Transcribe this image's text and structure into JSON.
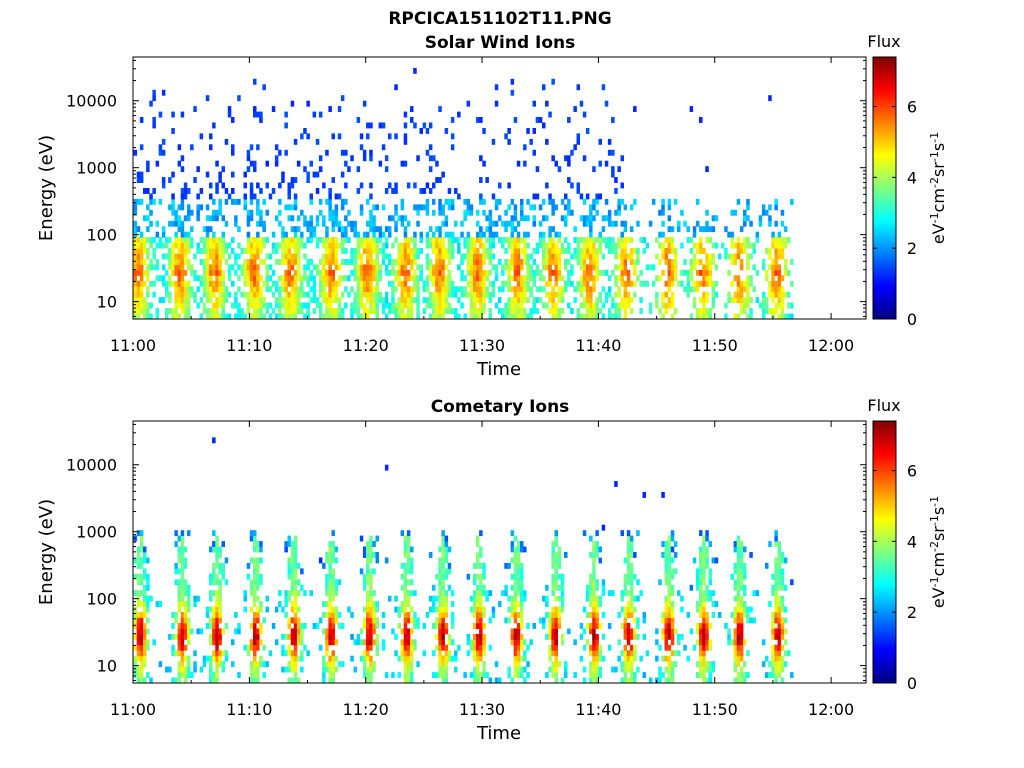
{
  "figure": {
    "title": "RPCICA151102T11.PNG"
  },
  "colors": {
    "colormap": [
      "#00007f",
      "#0000ff",
      "#007fff",
      "#00ffff",
      "#7fff7f",
      "#ffff00",
      "#ff7f00",
      "#ff0000",
      "#7f0000"
    ],
    "axes": "#000000",
    "background": "#ffffff"
  },
  "chart_data": [
    {
      "type": "heatmap",
      "title": "Solar Wind Ions",
      "xlabel": "Time",
      "ylabel": "Energy (eV)",
      "x_ticks": [
        "11:00",
        "11:10",
        "11:20",
        "11:30",
        "11:40",
        "11:50",
        "12:00"
      ],
      "x_range_min": [
        0,
        63
      ],
      "y_ticks": [
        "10",
        "100",
        "1000",
        "10000"
      ],
      "y_scale": "log",
      "y_range_eV": [
        5.5,
        45000
      ],
      "colorbar": {
        "title": "Flux",
        "label": "eV-1cm-2sr-1s-1",
        "ticks": [
          "0",
          "2",
          "4",
          "6"
        ],
        "range": [
          0,
          7.4
        ]
      },
      "data_end_min": 56.5,
      "continuous_end_min": 42,
      "pulse_centers_min": [
        0.3,
        3.9,
        6.9,
        10.3,
        13.4,
        16.9,
        20.0,
        23.3,
        26.2,
        29.5,
        32.9,
        36.0,
        39.1,
        42.3,
        45.8,
        48.8,
        52.0,
        55.2
      ],
      "grid": false
    },
    {
      "type": "heatmap",
      "title": "Cometary Ions",
      "xlabel": "Time",
      "ylabel": "Energy (eV)",
      "x_ticks": [
        "11:00",
        "11:10",
        "11:20",
        "11:30",
        "11:40",
        "11:50",
        "12:00"
      ],
      "x_range_min": [
        0,
        63
      ],
      "y_ticks": [
        "10",
        "100",
        "1000",
        "10000"
      ],
      "y_scale": "log",
      "y_range_eV": [
        5.5,
        45000
      ],
      "colorbar": {
        "title": "Flux",
        "label": "eV-1cm-2sr-1s-1",
        "ticks": [
          "0",
          "2",
          "4",
          "6"
        ],
        "range": [
          0,
          7.4
        ]
      },
      "data_end_min": 56.5,
      "pulse_centers_min": [
        0.5,
        4.1,
        7.1,
        10.4,
        13.7,
        16.9,
        20.2,
        23.4,
        26.5,
        29.6,
        32.8,
        36.2,
        39.5,
        42.5,
        45.9,
        48.9,
        52.0,
        55.3
      ],
      "grid": false
    }
  ]
}
